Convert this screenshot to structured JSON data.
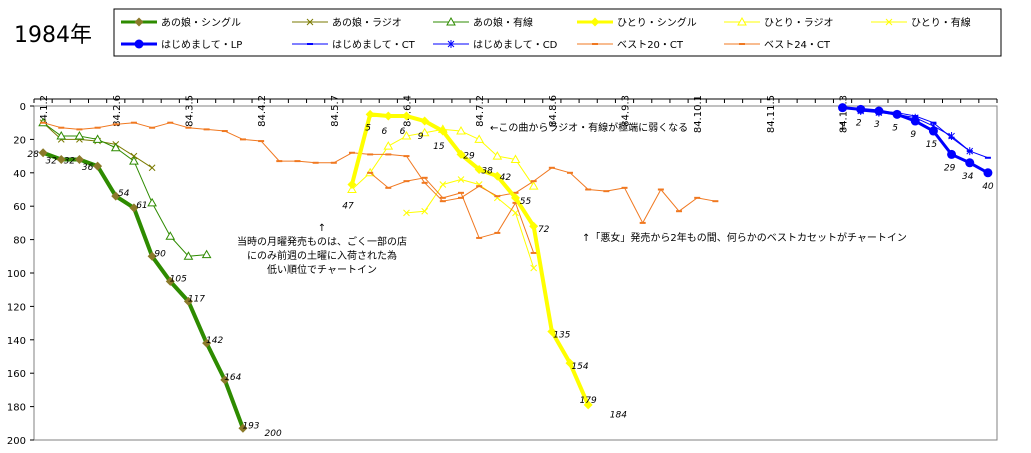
{
  "title": "1984年",
  "chart_data": {
    "type": "line",
    "ylim": [
      0,
      200
    ],
    "y_reversed": true,
    "yticks": [
      0,
      20,
      40,
      60,
      80,
      100,
      120,
      140,
      160,
      180,
      200
    ],
    "x_tick_labels": [
      "84.1.2",
      "84.2.6",
      "84.3.5",
      "84.4.2",
      "84.5.7",
      "84.6.4",
      "84.7.2",
      "84.8.6",
      "84.9.3",
      "84.10.1",
      "84.11.5",
      "84.12.3"
    ],
    "series": [
      {
        "name": "あの娘・シングル",
        "color": "#2e8b00",
        "marker": "diamond",
        "width": 4,
        "x": [
          0,
          1,
          2,
          3,
          4,
          5,
          6,
          7,
          8,
          9,
          10,
          11
        ],
        "y": [
          28,
          32,
          32,
          36,
          54,
          61,
          90,
          105,
          117,
          142,
          164,
          193
        ]
      },
      {
        "name": "あの娘・ラジオ",
        "color": "#7a7a00",
        "marker": "x",
        "width": 1,
        "x": [
          0,
          1,
          2,
          3,
          4,
          5,
          6
        ],
        "y": [
          10,
          20,
          20,
          21,
          23,
          30,
          37
        ]
      },
      {
        "name": "あの娘・有線",
        "color": "#2e8b00",
        "marker": "triangle",
        "width": 1,
        "x": [
          0,
          1,
          2,
          3,
          4,
          5,
          6,
          7,
          8,
          9
        ],
        "y": [
          10,
          18,
          18,
          20,
          25,
          33,
          58,
          78,
          90,
          89
        ]
      },
      {
        "name": "ひとり・シングル",
        "color": "#ffff00",
        "marker": "diamond",
        "width": 4,
        "x": [
          17,
          18,
          19,
          20,
          21,
          22,
          23,
          24,
          25,
          26,
          27,
          28,
          29,
          30
        ],
        "y": [
          47,
          5,
          6,
          6,
          9,
          15,
          29,
          38,
          42,
          55,
          72,
          135,
          154,
          179
        ]
      },
      {
        "name": "ひとり・ラジオ",
        "color": "#ffff00",
        "marker": "triangle",
        "width": 1,
        "x": [
          17,
          18,
          19,
          20,
          21,
          22,
          23,
          24,
          25,
          26,
          27
        ],
        "y": [
          50,
          40,
          24,
          18,
          16,
          14,
          15,
          20,
          30,
          32,
          48
        ]
      },
      {
        "name": "ひとり・有線",
        "color": "#ffff00",
        "marker": "x",
        "width": 1,
        "x": [
          20,
          21,
          22,
          23,
          24,
          25,
          26,
          27
        ],
        "y": [
          64,
          63,
          47,
          44,
          47,
          55,
          64,
          97
        ]
      },
      {
        "name": "はじめまして・LP",
        "color": "#0000ff",
        "marker": "circle",
        "width": 3,
        "x": [
          44,
          45,
          46,
          47,
          48,
          49,
          50,
          51,
          52
        ],
        "y": [
          1,
          2,
          3,
          5,
          9,
          15,
          29,
          34,
          40
        ]
      },
      {
        "name": "はじめまして・CT",
        "color": "#0000ff",
        "marker": "dash",
        "width": 1,
        "x": [
          44,
          45,
          46,
          47,
          48,
          49,
          50,
          51,
          52
        ],
        "y": [
          1,
          2,
          3,
          4,
          6,
          10,
          19,
          27,
          31
        ]
      },
      {
        "name": "はじめまして・CD",
        "color": "#0000ff",
        "marker": "asterisk",
        "width": 1,
        "x": [
          45,
          46,
          47,
          48,
          49,
          50,
          51
        ],
        "y": [
          3,
          4,
          5,
          7,
          12,
          18,
          27
        ]
      },
      {
        "name": "ベスト20・CT",
        "color": "#f07820",
        "marker": "dash",
        "width": 1,
        "x": [
          18,
          19,
          20,
          21,
          22,
          23,
          24,
          25,
          26,
          27
        ],
        "y": [
          40,
          49,
          45,
          43,
          55,
          52,
          79,
          76,
          58,
          88
        ]
      },
      {
        "name": "ベスト24・CT",
        "color": "#f07820",
        "marker": "dash",
        "width": 1,
        "x": [
          0,
          1,
          2,
          3,
          4,
          5,
          6,
          7,
          8,
          9,
          10,
          11,
          12,
          13,
          14,
          15,
          16,
          17,
          18,
          19,
          20,
          21,
          22,
          23,
          24,
          25,
          26,
          27,
          28,
          29,
          30,
          31,
          32,
          33,
          34,
          35,
          36,
          37
        ],
        "y": [
          10,
          13,
          14,
          13,
          11,
          10,
          13,
          10,
          13,
          14,
          15,
          20,
          21,
          33,
          33,
          34,
          34,
          28,
          29,
          29,
          30,
          46,
          57,
          55,
          48,
          54,
          52,
          45,
          37,
          40,
          50,
          51,
          49,
          70,
          50,
          63,
          55,
          57
        ]
      }
    ]
  },
  "annotations": [
    {
      "id": "note-radio",
      "lines": [
        "←この曲からラジオ・有線が極端に弱くなる"
      ]
    },
    {
      "id": "note-getsuyo",
      "lines": [
        "↑",
        "当時の月曜発売ものは、ごく一部の店",
        "にのみ前週の土曜に入荷された為",
        "低い順位でチャートイン"
      ]
    },
    {
      "id": "note-akujo",
      "lines": [
        "↑「悪女」発売から2年もの間、何らかのベストカセットがチャートイン"
      ]
    }
  ],
  "rank_labels": [
    {
      "series": 0,
      "x": 0,
      "text": "28"
    },
    {
      "series": 0,
      "x": 1,
      "text": "32"
    },
    {
      "series": 0,
      "x": 2,
      "text": "32"
    },
    {
      "series": 0,
      "x": 3,
      "text": "36"
    },
    {
      "series": 0,
      "x": 4,
      "text": "54"
    },
    {
      "series": 0,
      "x": 5,
      "text": "61"
    },
    {
      "series": 0,
      "x": 6,
      "text": "90"
    },
    {
      "series": 0,
      "x": 7,
      "text": "105"
    },
    {
      "series": 0,
      "x": 8,
      "text": "117"
    },
    {
      "series": 0,
      "x": 9,
      "text": "142"
    },
    {
      "series": 0,
      "x": 10,
      "text": "164"
    },
    {
      "series": 0,
      "x": 11,
      "text": "193"
    },
    {
      "series": 0,
      "x": 12,
      "y": 200,
      "text": "200"
    },
    {
      "series": 3,
      "x": 17,
      "text": "47"
    },
    {
      "series": 3,
      "x": 18,
      "text": "5"
    },
    {
      "series": 3,
      "x": 19,
      "text": "6"
    },
    {
      "series": 3,
      "x": 20,
      "text": "6"
    },
    {
      "series": 3,
      "x": 21,
      "text": "9"
    },
    {
      "series": 3,
      "x": 22,
      "text": "15"
    },
    {
      "series": 3,
      "x": 23,
      "text": "29"
    },
    {
      "series": 3,
      "x": 24,
      "text": "38"
    },
    {
      "series": 3,
      "x": 25,
      "text": "42"
    },
    {
      "series": 3,
      "x": 26,
      "text": "55"
    },
    {
      "series": 3,
      "x": 27,
      "text": "72"
    },
    {
      "series": 3,
      "x": 28,
      "text": "135"
    },
    {
      "series": 3,
      "x": 29,
      "text": "154"
    },
    {
      "series": 3,
      "x": 30,
      "text": "179"
    },
    {
      "series": 3,
      "x": 31,
      "y": 184,
      "text": "184"
    },
    {
      "series": 6,
      "x": 44,
      "text": "1"
    },
    {
      "series": 6,
      "x": 45,
      "text": "2"
    },
    {
      "series": 6,
      "x": 46,
      "text": "3"
    },
    {
      "series": 6,
      "x": 47,
      "text": "5"
    },
    {
      "series": 6,
      "x": 48,
      "text": "9"
    },
    {
      "series": 6,
      "x": 49,
      "text": "15"
    },
    {
      "series": 6,
      "x": 50,
      "text": "29"
    },
    {
      "series": 6,
      "x": 51,
      "text": "34"
    },
    {
      "series": 6,
      "x": 52,
      "text": "40"
    }
  ]
}
